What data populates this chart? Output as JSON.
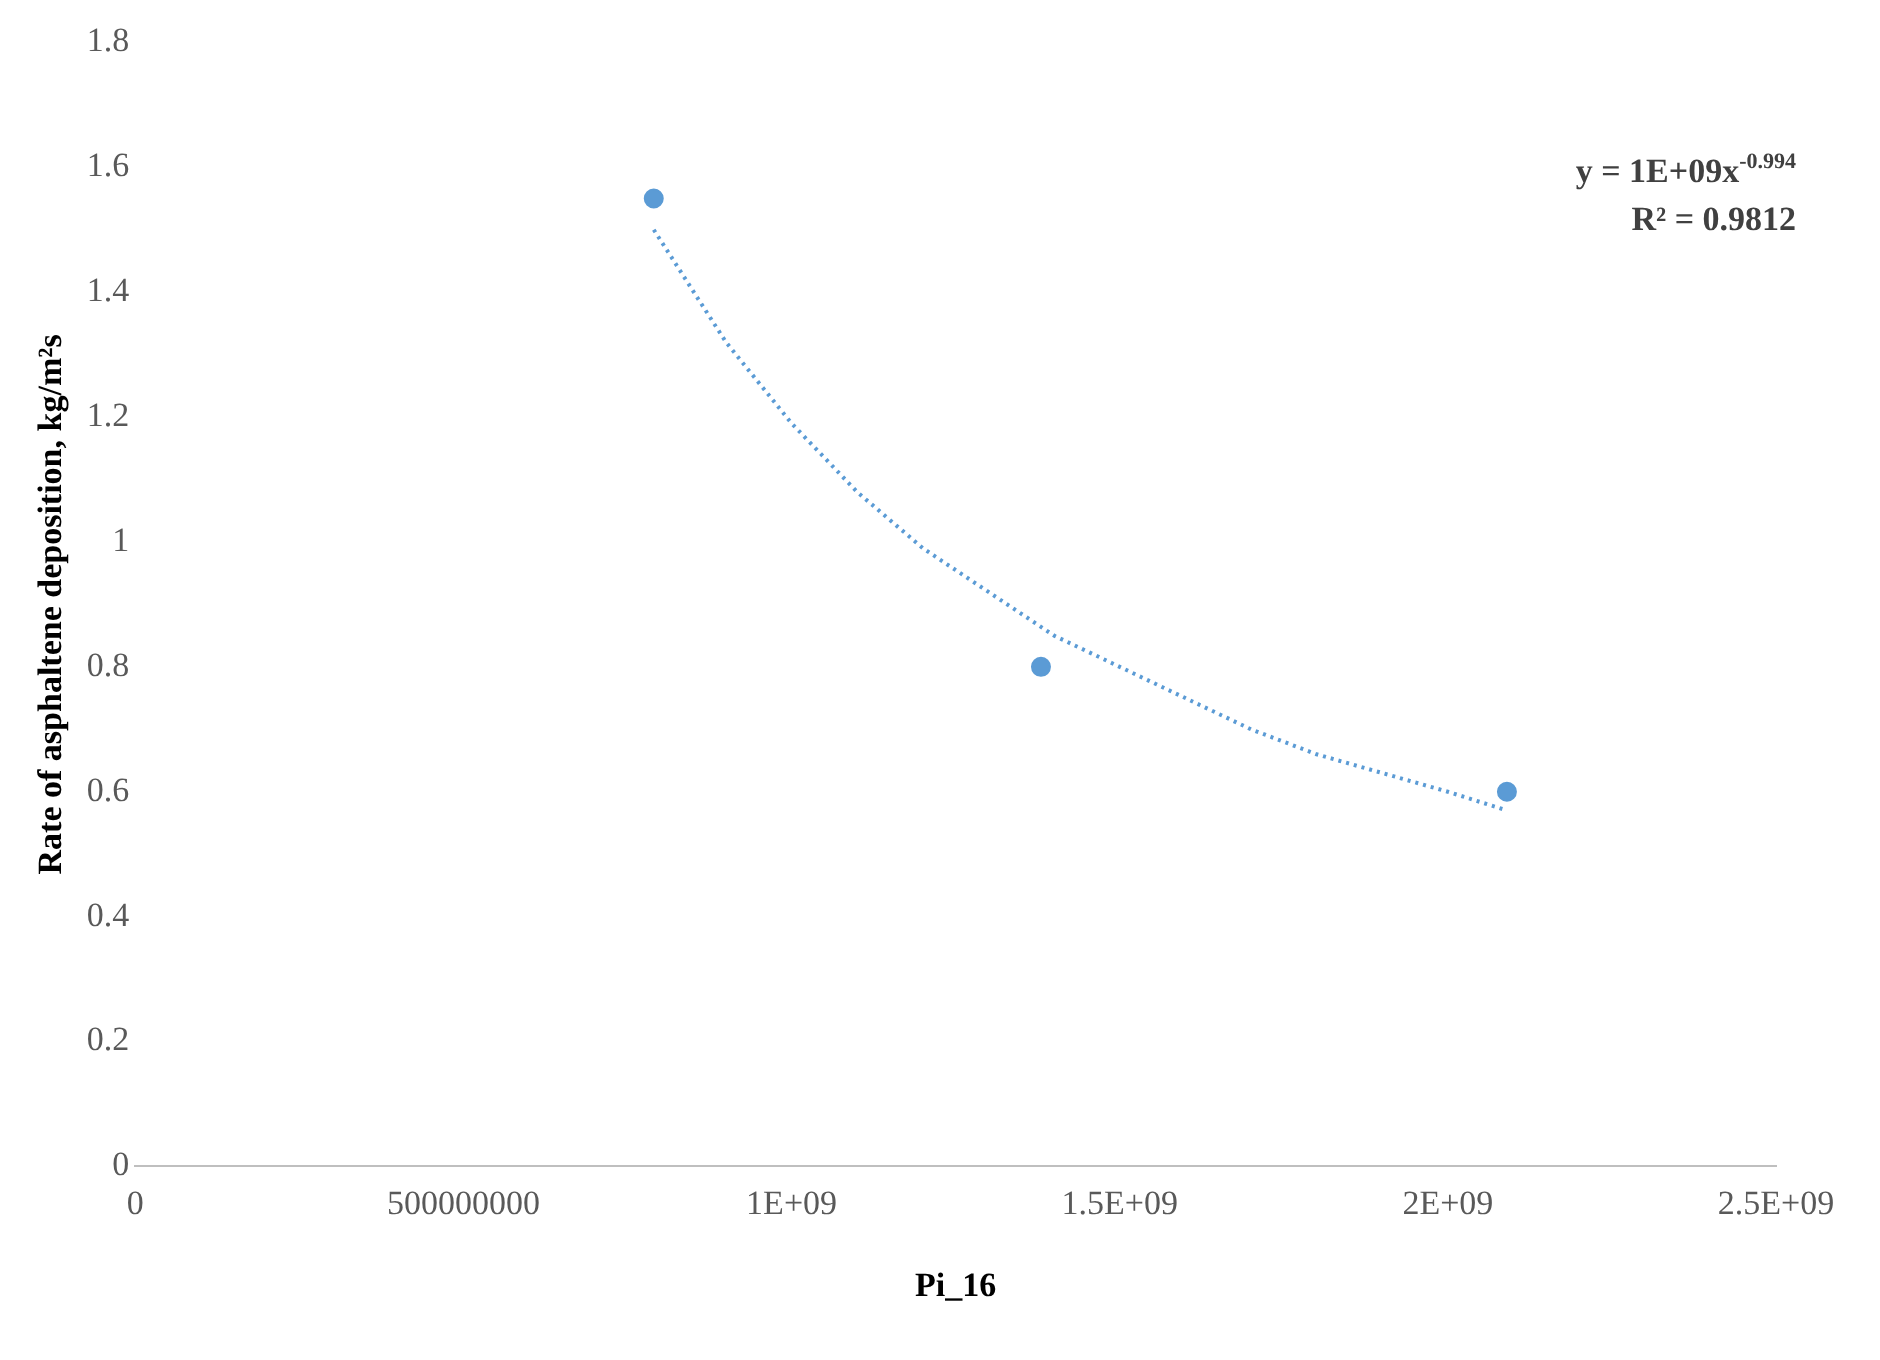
{
  "chart_data": {
    "type": "scatter",
    "xlabel": "Pi_16",
    "ylabel": "Rate of asphaltene deposition, kg/m²s",
    "xlim": [
      0,
      2500000000
    ],
    "xticks": [
      0,
      500000000,
      {
        "value": 1000000000,
        "label": "1E+09"
      },
      {
        "value": 1500000000,
        "label": "1.5E+09"
      },
      {
        "value": 2000000000,
        "label": "2E+09"
      },
      {
        "value": 2500000000,
        "label": "2.5E+09"
      }
    ],
    "ylim": [
      0,
      1.8
    ],
    "yticks": [
      0,
      0.2,
      0.4,
      0.6,
      0.8,
      1,
      1.2,
      1.4,
      1.6,
      1.8
    ],
    "grid": false,
    "legend": false,
    "series": [
      {
        "color": "#5b9bd5",
        "marker": "circle",
        "x": [
          790000000,
          1380000000,
          2090000000
        ],
        "values": [
          1.55,
          0.8,
          0.6
        ]
      },
      {
        "type": "line",
        "color": "#5b9bd5",
        "marker": "none",
        "line_style": "dotted",
        "x": [
          790000000,
          900000000,
          1000000000,
          1100000000,
          1200000000,
          1300000000,
          1400000000,
          1500000000,
          1600000000,
          1700000000,
          1800000000,
          1900000000,
          2000000000,
          2090000000
        ],
        "values": [
          1.5,
          1.32,
          1.19,
          1.08,
          0.99,
          0.92,
          0.85,
          0.8,
          0.75,
          0.7,
          0.66,
          0.63,
          0.6,
          0.57
        ]
      }
    ],
    "annotations": [
      "y = 1E+09x$^{-0.994}$",
      "R² = 0.9812"
    ]
  }
}
